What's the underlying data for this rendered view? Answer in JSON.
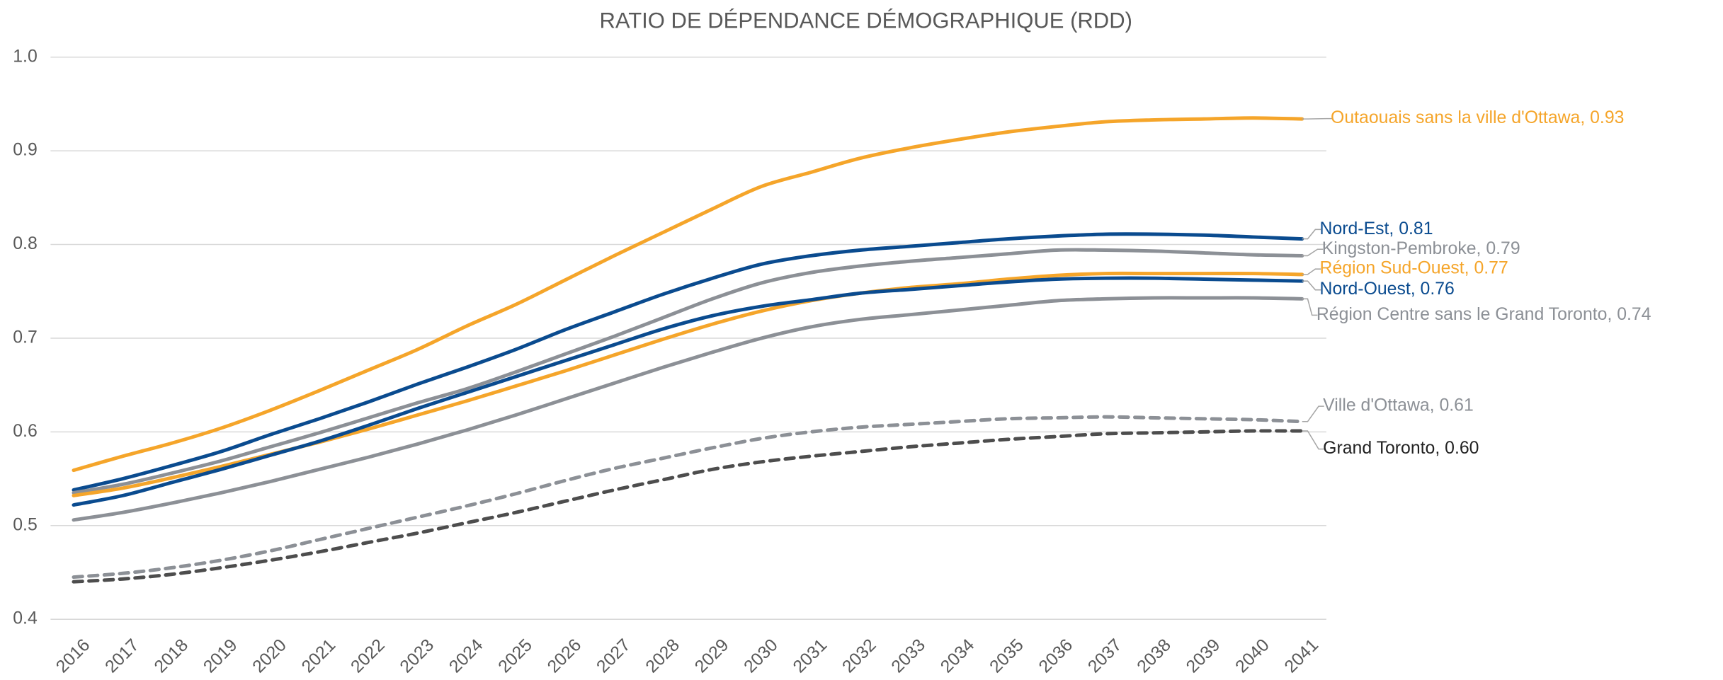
{
  "chart_data": {
    "type": "line",
    "title": "RATIO DE DÉPENDANCE DÉMOGRAPHIQUE (RDD)",
    "x": [
      2016,
      2017,
      2018,
      2019,
      2020,
      2021,
      2022,
      2023,
      2024,
      2025,
      2026,
      2027,
      2028,
      2029,
      2030,
      2031,
      2032,
      2033,
      2034,
      2035,
      2036,
      2037,
      2038,
      2039,
      2040,
      2041
    ],
    "ylim": [
      0.4,
      1.0
    ],
    "yticks": [
      0.4,
      0.5,
      0.6,
      0.7,
      0.8,
      0.9,
      {
        "value": 1,
        "label": "1.0"
      }
    ],
    "grid": true,
    "series": [
      {
        "name": "Outaouais sans la ville d'Ottawa, 0.93",
        "color": "#f5a52a",
        "style": "solid",
        "values": [
          0.559,
          0.574,
          0.588,
          0.604,
          0.623,
          0.644,
          0.666,
          0.688,
          0.713,
          0.736,
          0.762,
          0.788,
          0.813,
          0.838,
          0.862,
          0.877,
          0.892,
          0.903,
          0.912,
          0.92,
          0.926,
          0.931,
          0.933,
          0.934,
          0.935,
          0.934
        ]
      },
      {
        "name": "Nord-Est, 0.81",
        "color": "#0a4b8f",
        "style": "solid",
        "values": [
          0.538,
          0.55,
          0.564,
          0.579,
          0.597,
          0.614,
          0.632,
          0.651,
          0.669,
          0.688,
          0.709,
          0.728,
          0.747,
          0.764,
          0.779,
          0.788,
          0.794,
          0.798,
          0.802,
          0.806,
          0.809,
          0.811,
          0.811,
          0.81,
          0.808,
          0.806
        ]
      },
      {
        "name": "Kingston-Pembroke, 0.79",
        "color": "#8c9096",
        "style": "solid",
        "values": [
          0.535,
          0.544,
          0.556,
          0.569,
          0.584,
          0.599,
          0.615,
          0.631,
          0.646,
          0.664,
          0.683,
          0.702,
          0.722,
          0.742,
          0.759,
          0.77,
          0.777,
          0.782,
          0.786,
          0.79,
          0.794,
          0.794,
          0.793,
          0.791,
          0.789,
          0.788
        ]
      },
      {
        "name": "Région Sud-Ouest, 0.77",
        "color": "#f5a52a",
        "style": "solid",
        "values": [
          0.532,
          0.54,
          0.551,
          0.563,
          0.576,
          0.589,
          0.603,
          0.618,
          0.633,
          0.649,
          0.665,
          0.682,
          0.699,
          0.715,
          0.729,
          0.74,
          0.748,
          0.754,
          0.758,
          0.763,
          0.767,
          0.769,
          0.769,
          0.769,
          0.769,
          0.768
        ]
      },
      {
        "name": "Nord-Ouest, 0.76",
        "color": "#0a4b8f",
        "style": "solid",
        "values": [
          0.522,
          0.532,
          0.546,
          0.56,
          0.575,
          0.59,
          0.607,
          0.625,
          0.642,
          0.659,
          0.676,
          0.693,
          0.71,
          0.724,
          0.734,
          0.741,
          0.748,
          0.752,
          0.756,
          0.76,
          0.763,
          0.764,
          0.764,
          0.763,
          0.762,
          0.761
        ]
      },
      {
        "name": "Région Centre sans le Grand Toronto, 0.74",
        "color": "#8c9096",
        "style": "solid",
        "values": [
          0.506,
          0.514,
          0.524,
          0.535,
          0.547,
          0.56,
          0.573,
          0.587,
          0.602,
          0.618,
          0.635,
          0.652,
          0.669,
          0.685,
          0.7,
          0.712,
          0.72,
          0.725,
          0.73,
          0.735,
          0.74,
          0.742,
          0.743,
          0.743,
          0.743,
          0.742
        ]
      },
      {
        "name": "Ville d'Ottawa, 0.61",
        "color": "#8c9096",
        "style": "dashed",
        "values": [
          0.445,
          0.449,
          0.455,
          0.463,
          0.473,
          0.485,
          0.497,
          0.509,
          0.521,
          0.534,
          0.548,
          0.561,
          0.572,
          0.583,
          0.593,
          0.6,
          0.605,
          0.608,
          0.611,
          0.614,
          0.615,
          0.616,
          0.615,
          0.614,
          0.613,
          0.611
        ]
      },
      {
        "name": "Grand Toronto, 0.60",
        "color": "#4d4d4d",
        "style": "dashed",
        "values": [
          0.44,
          0.443,
          0.448,
          0.455,
          0.463,
          0.472,
          0.482,
          0.492,
          0.503,
          0.514,
          0.526,
          0.538,
          0.549,
          0.56,
          0.568,
          0.574,
          0.579,
          0.584,
          0.588,
          0.592,
          0.595,
          0.598,
          0.599,
          0.6,
          0.601,
          0.601
        ]
      }
    ]
  }
}
